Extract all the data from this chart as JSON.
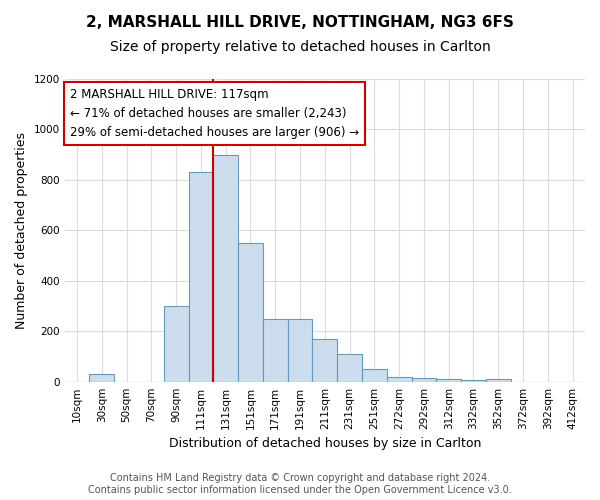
{
  "title": "2, MARSHALL HILL DRIVE, NOTTINGHAM, NG3 6FS",
  "subtitle": "Size of property relative to detached houses in Carlton",
  "xlabel": "Distribution of detached houses by size in Carlton",
  "ylabel": "Number of detached properties",
  "bar_labels": [
    "10sqm",
    "30sqm",
    "50sqm",
    "70sqm",
    "90sqm",
    "111sqm",
    "131sqm",
    "151sqm",
    "171sqm",
    "191sqm",
    "211sqm",
    "231sqm",
    "251sqm",
    "272sqm",
    "292sqm",
    "312sqm",
    "332sqm",
    "352sqm",
    "372sqm",
    "392sqm",
    "412sqm"
  ],
  "bar_heights": [
    0,
    30,
    0,
    0,
    300,
    830,
    900,
    550,
    250,
    250,
    170,
    110,
    50,
    20,
    15,
    10,
    5,
    10,
    0,
    0,
    0
  ],
  "bar_color": "#ccdded",
  "bar_edge_color": "#6699bb",
  "red_line_x": 5.5,
  "red_line_color": "#cc0000",
  "annotation_text": "2 MARSHALL HILL DRIVE: 117sqm\n← 71% of detached houses are smaller (2,243)\n29% of semi-detached houses are larger (906) →",
  "annotation_box_color": "#ffffff",
  "annotation_box_edge": "#cc0000",
  "ylim": [
    0,
    1200
  ],
  "yticks": [
    0,
    200,
    400,
    600,
    800,
    1000,
    1200
  ],
  "footer": "Contains HM Land Registry data © Crown copyright and database right 2024.\nContains public sector information licensed under the Open Government Licence v3.0.",
  "background_color": "#ffffff",
  "plot_background": "#ffffff",
  "grid_color": "#dddddd",
  "title_fontsize": 11,
  "subtitle_fontsize": 10,
  "xlabel_fontsize": 9,
  "ylabel_fontsize": 9,
  "tick_fontsize": 7.5,
  "footer_fontsize": 7,
  "annotation_fontsize": 8.5
}
